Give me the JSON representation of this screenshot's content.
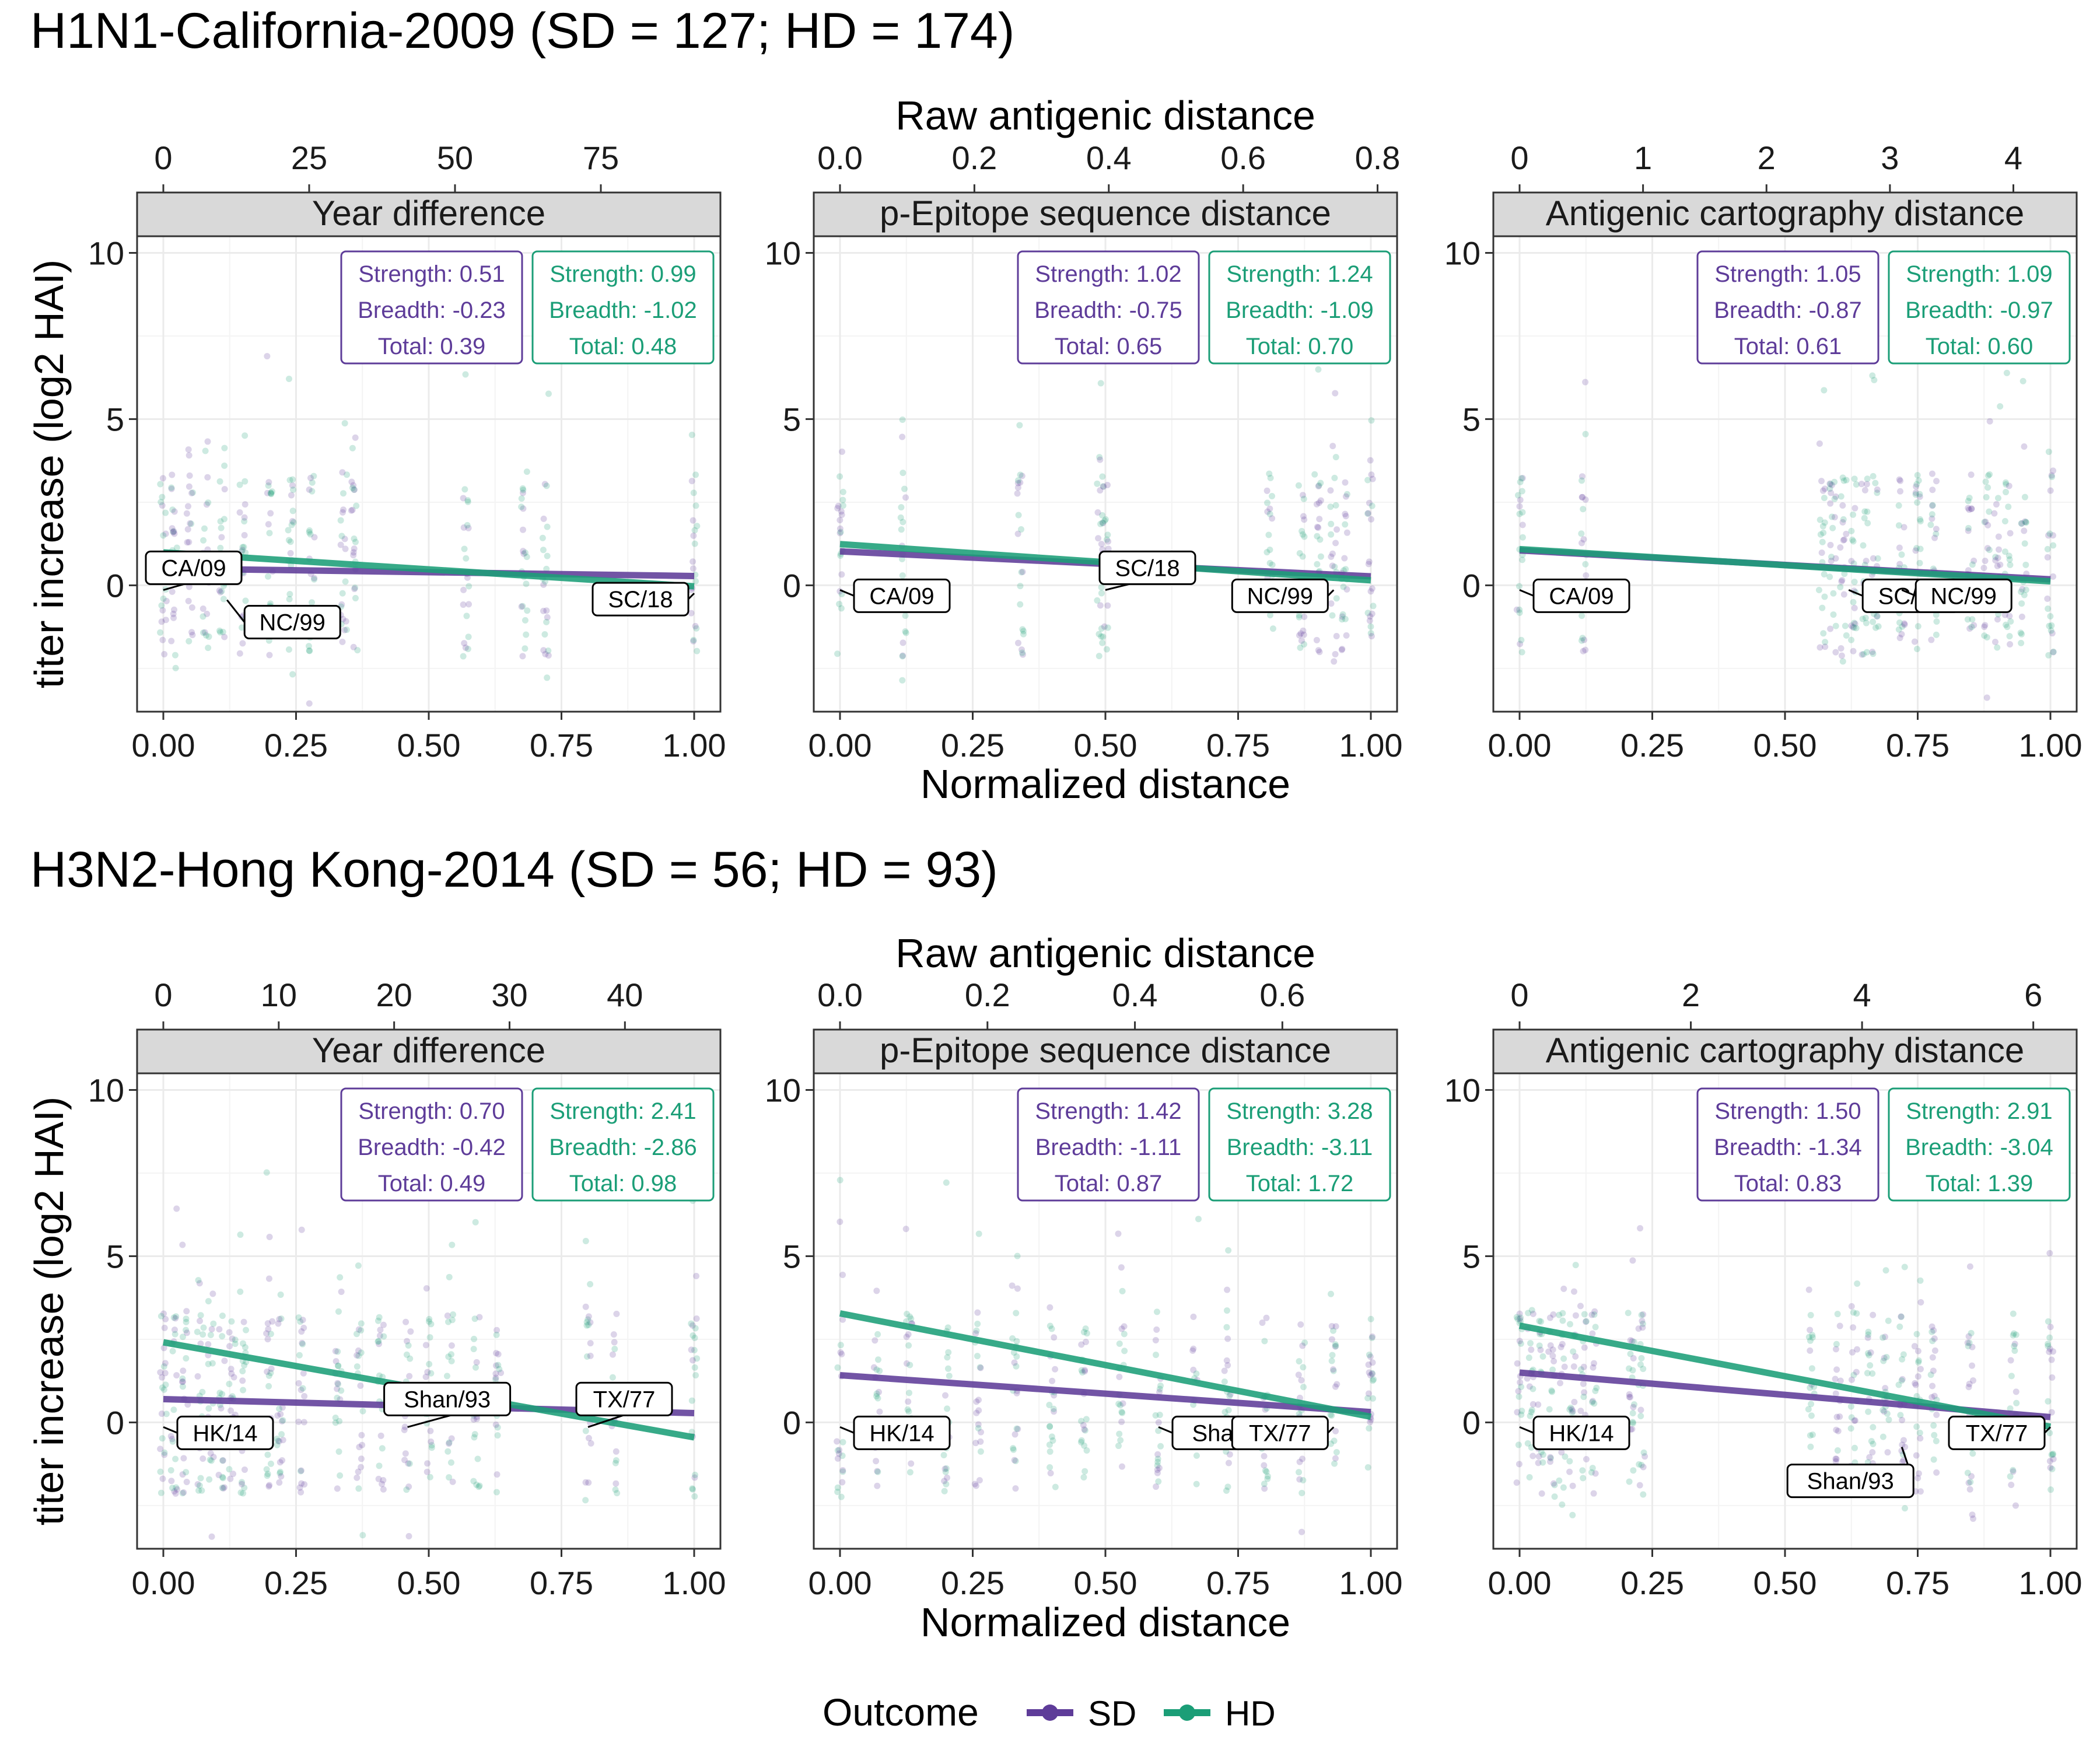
{
  "legend": {
    "title": "Outcome",
    "items": [
      {
        "label": "SD",
        "color": "#5e3c99"
      },
      {
        "label": "HD",
        "color": "#1b9e77"
      }
    ]
  },
  "colors": {
    "SD": "#5e3c99",
    "HD": "#1b9e77",
    "strip": "#d9d9d9",
    "grid": "#ebebeb"
  },
  "shared_axes": {
    "ylabel": "titer increase (log2 HAI)",
    "xlabel_bottom": "Normalized distance",
    "xlabel_top": "Raw antigenic distance",
    "x_ticks": [
      "0.00",
      "0.25",
      "0.50",
      "0.75",
      "1.00"
    ],
    "y_ticks": [
      "0",
      "5",
      "10"
    ]
  },
  "chart_data": [
    {
      "type": "scatter",
      "figure": "H1N1-California-2009 (SD = 127; HD = 174)",
      "title": "Year difference",
      "top_axis": {
        "ticks": [
          "0",
          "25",
          "50",
          "75"
        ],
        "values": [
          0,
          25,
          50,
          75
        ],
        "max": 91
      },
      "xlim": [
        0,
        1
      ],
      "ylim": [
        -3.8,
        10.5
      ],
      "stats": {
        "SD": [
          "Strength: 0.51",
          "Breadth: -0.23",
          "Total: 0.39"
        ],
        "HD": [
          "Strength: 0.99",
          "Breadth: -1.02",
          "Total: 0.48"
        ]
      },
      "series": [
        {
          "name": "SD",
          "x": [
            0,
            1
          ],
          "y": [
            0.51,
            0.28
          ]
        },
        {
          "name": "HD",
          "x": [
            0,
            1
          ],
          "y": [
            0.99,
            -0.03
          ]
        }
      ],
      "strain_labels": [
        {
          "label": "CA/09",
          "x": 0.0,
          "y": 0.0
        },
        {
          "label": "NC/99",
          "x": 0.12,
          "y": -0.3
        },
        {
          "label": "SC/18",
          "x": 1.0,
          "y": -0.1
        }
      ],
      "point_columns": [
        0.0,
        0.02,
        0.05,
        0.08,
        0.11,
        0.15,
        0.2,
        0.24,
        0.28,
        0.34,
        0.36,
        0.57,
        0.68,
        0.72,
        1.0
      ]
    },
    {
      "type": "scatter",
      "figure": "H1N1-California-2009 (SD = 127; HD = 174)",
      "title": "p-Epitope sequence distance",
      "top_axis": {
        "ticks": [
          "0.0",
          "0.2",
          "0.4",
          "0.6",
          "0.8"
        ],
        "values": [
          0.0,
          0.2,
          0.4,
          0.6,
          0.8
        ],
        "max": 0.79
      },
      "xlim": [
        0,
        1
      ],
      "ylim": [
        -3.8,
        10.5
      ],
      "stats": {
        "SD": [
          "Strength: 1.02",
          "Breadth: -0.75",
          "Total: 0.65"
        ],
        "HD": [
          "Strength: 1.24",
          "Breadth: -1.09",
          "Total: 0.70"
        ]
      },
      "series": [
        {
          "name": "SD",
          "x": [
            0,
            1
          ],
          "y": [
            1.02,
            0.27
          ]
        },
        {
          "name": "HD",
          "x": [
            0,
            1
          ],
          "y": [
            1.24,
            0.15
          ]
        }
      ],
      "strain_labels": [
        {
          "label": "CA/09",
          "x": 0.0,
          "y": 0.0
        },
        {
          "label": "SC/18",
          "x": 0.5,
          "y": 0.0
        },
        {
          "label": "NC/99",
          "x": 0.93,
          "y": 0.0
        }
      ],
      "point_columns": [
        0.0,
        0.12,
        0.34,
        0.49,
        0.5,
        0.81,
        0.87,
        0.9,
        0.93,
        0.95,
        1.0
      ]
    },
    {
      "type": "scatter",
      "figure": "H1N1-California-2009 (SD = 127; HD = 174)",
      "title": "Antigenic cartography distance",
      "top_axis": {
        "ticks": [
          "0",
          "1",
          "2",
          "3",
          "4"
        ],
        "values": [
          0,
          1,
          2,
          3,
          4
        ],
        "max": 4.3
      },
      "xlim": [
        0,
        1
      ],
      "ylim": [
        -3.8,
        10.5
      ],
      "stats": {
        "SD": [
          "Strength: 1.05",
          "Breadth: -0.87",
          "Total: 0.61"
        ],
        "HD": [
          "Strength: 1.09",
          "Breadth: -0.97",
          "Total: 0.60"
        ]
      },
      "series": [
        {
          "name": "SD",
          "x": [
            0,
            1
          ],
          "y": [
            1.05,
            0.18
          ]
        },
        {
          "name": "HD",
          "x": [
            0,
            1
          ],
          "y": [
            1.09,
            0.12
          ]
        }
      ],
      "strain_labels": [
        {
          "label": "CA/09",
          "x": 0.0,
          "y": 0.0
        },
        {
          "label": "SC/18",
          "x": 0.62,
          "y": 0.0
        },
        {
          "label": "NC/99",
          "x": 0.72,
          "y": 0.0
        }
      ],
      "point_columns": [
        0.0,
        0.12,
        0.57,
        0.59,
        0.61,
        0.63,
        0.65,
        0.67,
        0.72,
        0.75,
        0.78,
        0.85,
        0.88,
        0.9,
        0.92,
        0.95,
        1.0
      ]
    },
    {
      "type": "scatter",
      "figure": "H3N2-Hong Kong-2014 (SD = 56; HD = 93)",
      "title": "Year difference",
      "top_axis": {
        "ticks": [
          "0",
          "10",
          "20",
          "30",
          "40"
        ],
        "values": [
          0,
          10,
          20,
          30,
          40
        ],
        "max": 46
      },
      "xlim": [
        0,
        1
      ],
      "ylim": [
        -3.8,
        10.5
      ],
      "stats": {
        "SD": [
          "Strength: 0.70",
          "Breadth: -0.42",
          "Total: 0.49"
        ],
        "HD": [
          "Strength: 2.41",
          "Breadth: -2.86",
          "Total: 0.98"
        ]
      },
      "series": [
        {
          "name": "SD",
          "x": [
            0,
            1
          ],
          "y": [
            0.7,
            0.28
          ]
        },
        {
          "name": "HD",
          "x": [
            0,
            1
          ],
          "y": [
            2.41,
            -0.45
          ]
        }
      ],
      "strain_labels": [
        {
          "label": "HK/14",
          "x": 0.0,
          "y": 0.0
        },
        {
          "label": "Shan/93",
          "x": 0.46,
          "y": 0.0
        },
        {
          "label": "TX/77",
          "x": 0.8,
          "y": 0.0
        }
      ],
      "point_columns": [
        0.0,
        0.02,
        0.04,
        0.07,
        0.09,
        0.11,
        0.13,
        0.15,
        0.2,
        0.22,
        0.26,
        0.33,
        0.37,
        0.41,
        0.46,
        0.5,
        0.54,
        0.59,
        0.63,
        0.8,
        0.85,
        1.0
      ]
    },
    {
      "type": "scatter",
      "figure": "H3N2-Hong Kong-2014 (SD = 56; HD = 93)",
      "title": "p-Epitope sequence distance",
      "top_axis": {
        "ticks": [
          "0.0",
          "0.2",
          "0.4",
          "0.6"
        ],
        "values": [
          0.0,
          0.2,
          0.4,
          0.6
        ],
        "max": 0.72
      },
      "xlim": [
        0,
        1
      ],
      "ylim": [
        -3.8,
        10.5
      ],
      "stats": {
        "SD": [
          "Strength: 1.42",
          "Breadth: -1.11",
          "Total: 0.87"
        ],
        "HD": [
          "Strength: 3.28",
          "Breadth: -3.11",
          "Total: 1.72"
        ]
      },
      "series": [
        {
          "name": "SD",
          "x": [
            0,
            1
          ],
          "y": [
            1.42,
            0.31
          ]
        },
        {
          "name": "HD",
          "x": [
            0,
            1
          ],
          "y": [
            3.28,
            0.17
          ]
        }
      ],
      "strain_labels": [
        {
          "label": "HK/14",
          "x": 0.0,
          "y": 0.0
        },
        {
          "label": "Shan/93",
          "x": 0.6,
          "y": 0.0
        },
        {
          "label": "TX/77",
          "x": 0.93,
          "y": 0.0
        }
      ],
      "point_columns": [
        0.0,
        0.07,
        0.13,
        0.2,
        0.26,
        0.33,
        0.4,
        0.46,
        0.53,
        0.6,
        0.67,
        0.73,
        0.8,
        0.87,
        0.93,
        1.0
      ]
    },
    {
      "type": "scatter",
      "figure": "H3N2-Hong Kong-2014 (SD = 56; HD = 93)",
      "title": "Antigenic cartography distance",
      "top_axis": {
        "ticks": [
          "0",
          "2",
          "4",
          "6"
        ],
        "values": [
          0,
          2,
          4,
          6
        ],
        "max": 6.2
      },
      "xlim": [
        0,
        1
      ],
      "ylim": [
        -3.8,
        10.5
      ],
      "stats": {
        "SD": [
          "Strength: 1.50",
          "Breadth: -1.34",
          "Total: 0.83"
        ],
        "HD": [
          "Strength: 2.91",
          "Breadth: -3.04",
          "Total: 1.39"
        ]
      },
      "series": [
        {
          "name": "SD",
          "x": [
            0,
            1
          ],
          "y": [
            1.5,
            0.16
          ]
        },
        {
          "name": "HD",
          "x": [
            0,
            1
          ],
          "y": [
            2.91,
            -0.13
          ]
        }
      ],
      "strain_labels": [
        {
          "label": "HK/14",
          "x": 0.0,
          "y": 0.0
        },
        {
          "label": "Shan/93",
          "x": 0.72,
          "y": -0.6
        },
        {
          "label": "TX/77",
          "x": 1.0,
          "y": 0.0
        }
      ],
      "point_columns": [
        0.0,
        0.02,
        0.04,
        0.06,
        0.08,
        0.1,
        0.12,
        0.14,
        0.21,
        0.23,
        0.55,
        0.6,
        0.63,
        0.66,
        0.69,
        0.72,
        0.75,
        0.78,
        0.85,
        0.93,
        1.0
      ]
    }
  ]
}
